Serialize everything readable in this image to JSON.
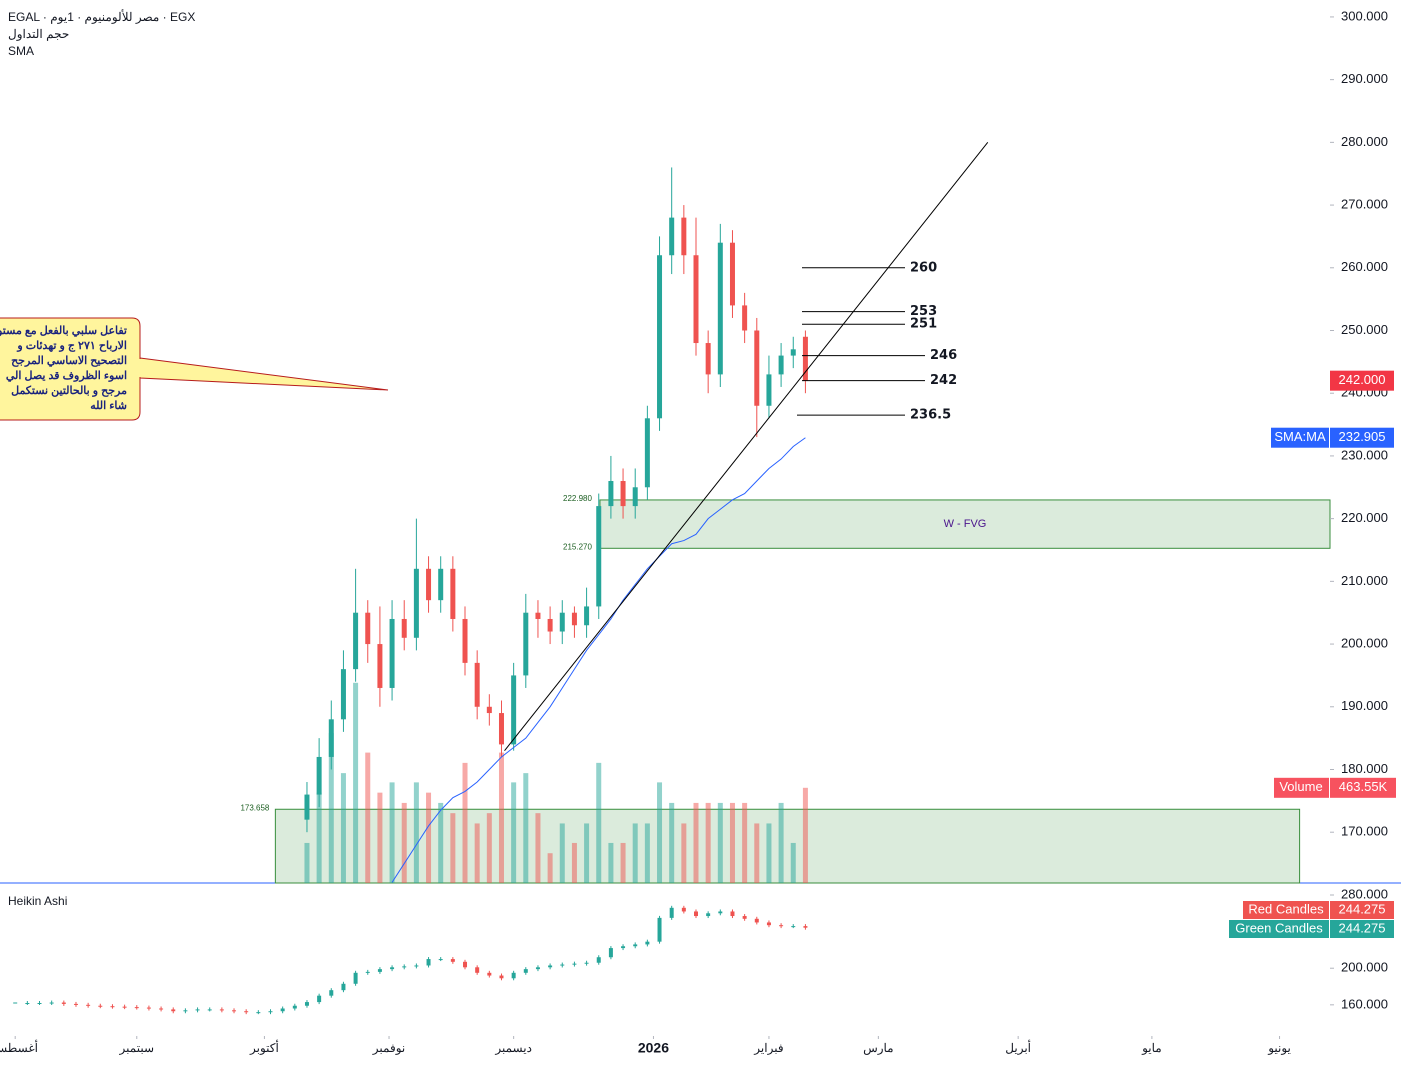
{
  "chart_data": {
    "type": "candlestick",
    "title": "EGAL · مصر للألومنيوم · 1يوم · EGX",
    "subtitle": "حجم التداول",
    "indicator": "SMA",
    "x": [
      48,
      50,
      52,
      54,
      56,
      58,
      60,
      62,
      64,
      66,
      68,
      70,
      72,
      74,
      76,
      78,
      80,
      82,
      84,
      86,
      88,
      90,
      92,
      94,
      96,
      98,
      100,
      102,
      104,
      106,
      108,
      110,
      112,
      114,
      116,
      118,
      120,
      122,
      124,
      126,
      128,
      130
    ],
    "open": [
      172,
      176,
      182,
      188,
      196,
      205,
      200,
      193,
      204,
      201,
      212,
      207,
      212,
      204,
      197,
      190,
      189,
      184,
      195,
      205,
      204,
      202,
      205,
      203,
      206,
      222,
      226,
      222,
      225,
      236,
      262,
      268,
      262,
      248,
      243,
      264,
      254,
      250,
      238,
      243,
      246,
      249
    ],
    "high": [
      178,
      185,
      191,
      199,
      212,
      207,
      206,
      207,
      207,
      220,
      214,
      214,
      214,
      206,
      199,
      192,
      191,
      197,
      208,
      207,
      206,
      207,
      206,
      209,
      224,
      230,
      228,
      228,
      238,
      265,
      276,
      270,
      268,
      250,
      267,
      266,
      256,
      252,
      246,
      248,
      249,
      250
    ],
    "low": [
      170,
      174,
      180,
      186,
      194,
      197,
      190,
      191,
      199,
      199,
      205,
      205,
      202,
      195,
      188,
      187,
      182,
      183,
      193,
      201,
      200,
      200,
      201,
      201,
      204,
      220,
      220,
      220,
      223,
      234,
      259,
      259,
      246,
      240,
      241,
      252,
      248,
      233,
      236,
      241,
      244,
      240
    ],
    "close": [
      176,
      182,
      188,
      196,
      205,
      200,
      193,
      204,
      201,
      212,
      207,
      212,
      204,
      197,
      190,
      189,
      184,
      195,
      205,
      204,
      202,
      205,
      203,
      206,
      222,
      226,
      222,
      225,
      236,
      262,
      268,
      262,
      248,
      243,
      264,
      254,
      250,
      238,
      243,
      246,
      247,
      242
    ],
    "up_color": "#26a69a",
    "down_color": "#ef5350",
    "xlim": [
      -2.5,
      216.3
    ],
    "ylim": [
      161.9,
      302.7
    ],
    "yticks": [
      {
        "value": 170,
        "label": "170.000"
      },
      {
        "value": 180,
        "label": "180.000"
      },
      {
        "value": 190,
        "label": "190.000"
      },
      {
        "value": 200,
        "label": "200.000"
      },
      {
        "value": 210,
        "label": "210.000"
      },
      {
        "value": 220,
        "label": "220.000"
      },
      {
        "value": 230,
        "label": "230.000"
      },
      {
        "value": 240,
        "label": "240.000"
      },
      {
        "value": 250,
        "label": "250.000"
      },
      {
        "value": 260,
        "label": "260.000"
      },
      {
        "value": 270,
        "label": "270.000"
      },
      {
        "value": 280,
        "label": "280.000"
      },
      {
        "value": 290,
        "label": "290.000"
      },
      {
        "value": 300,
        "label": "300.000"
      }
    ],
    "xticks": [
      {
        "value": 0,
        "label": "أغسطس"
      },
      {
        "value": 20,
        "label": "سبتمبر"
      },
      {
        "value": 41,
        "label": "أكتوبر"
      },
      {
        "value": 61.5,
        "label": "نوفمبر"
      },
      {
        "value": 82,
        "label": "ديسمبر"
      },
      {
        "value": 105,
        "label": "2026"
      },
      {
        "value": 124,
        "label": "فبراير"
      },
      {
        "value": 142,
        "label": "مارس"
      },
      {
        "value": 165,
        "label": "أبريل"
      },
      {
        "value": 187,
        "label": "مايو"
      },
      {
        "value": 208,
        "label": "يونيو"
      }
    ],
    "last_price": {
      "value": 242,
      "label": "242.000"
    },
    "sma": {
      "name": "SMA:MA",
      "color": "#2962ff",
      "last": {
        "value": 232.905,
        "label": "232.905"
      },
      "values": [
        null,
        null,
        null,
        null,
        null,
        null,
        null,
        162,
        165,
        168,
        171,
        173.5,
        175.5,
        176.5,
        178,
        180,
        182,
        183.5,
        185,
        187.5,
        190,
        193,
        196,
        199,
        201.5,
        204,
        207,
        209.5,
        212,
        214,
        216,
        216.5,
        217.5,
        220,
        221.5,
        223,
        224,
        226,
        228,
        229.5,
        231.5,
        232.9
      ]
    },
    "volume": {
      "name": "Volume",
      "ylim": [
        0,
        4300
      ],
      "last": {
        "value": 463.55,
        "label": "463.55K"
      },
      "values": [
        195,
        440,
        730,
        535,
        975,
        635,
        440,
        490,
        390,
        490,
        440,
        390,
        340,
        585,
        290,
        340,
        635,
        490,
        535,
        340,
        145,
        290,
        195,
        290,
        585,
        195,
        195,
        290,
        290,
        490,
        390,
        290,
        390,
        390,
        390,
        390,
        390,
        290,
        290,
        390,
        195,
        463.55
      ]
    },
    "levels": [
      260,
      253,
      251,
      246,
      242,
      236.5
    ],
    "trendline": {
      "x": [
        80.5,
        160
      ],
      "y": [
        183,
        280
      ]
    },
    "fvg": {
      "name": "W - FVG",
      "x_start": 96.2,
      "top": {
        "value": 222.98,
        "label": "222.980"
      },
      "bottom": {
        "value": 215.27,
        "label": "215.270"
      }
    },
    "volume_zone": {
      "x": [
        42.8,
        211.3
      ],
      "top": {
        "value": 173.658,
        "label": "173.658"
      }
    },
    "annotation": [
      "تفاعل سلبي بالفعل مع مستوى",
      "الارباح ٢٧١ ج و تهدئات و",
      "التصحيح الاساسي المرجح",
      "اسوء الظروف قد يصل الي",
      "مرجح و بالحالتين نستكمل",
      "شاء الله"
    ],
    "heikin_ashi": {
      "title": "Heikin Ashi",
      "ylim": [
        132.5,
        293.1
      ],
      "yticks": [
        {
          "value": 160,
          "label": "160.000"
        },
        {
          "value": 200,
          "label": "200.000"
        },
        {
          "value": 280,
          "label": "280.000"
        }
      ],
      "x": [
        0,
        2,
        4,
        6,
        8,
        10,
        12,
        14,
        16,
        18,
        20,
        22,
        24,
        26,
        28,
        30,
        32,
        34,
        36,
        38,
        40,
        42,
        44,
        46,
        48,
        50,
        52,
        54,
        56,
        58,
        60,
        62,
        64,
        66,
        68,
        70,
        72,
        74,
        76,
        78,
        80,
        82,
        84,
        86,
        88,
        90,
        92,
        94,
        96,
        98,
        100,
        102,
        104,
        106,
        108,
        110,
        112,
        114,
        116,
        118,
        120,
        122,
        124,
        126,
        128,
        130
      ],
      "values": [
        162,
        162,
        162,
        162.5,
        161,
        160,
        159,
        158.5,
        158,
        157.5,
        157,
        156,
        155,
        153,
        154,
        155,
        155,
        154,
        153,
        152,
        152,
        153,
        156,
        159,
        163,
        170,
        176,
        183,
        195,
        196,
        199,
        201,
        202,
        203,
        210,
        210,
        207,
        201,
        195,
        192,
        189,
        195,
        199,
        201,
        203,
        204,
        205,
        206,
        212,
        222,
        224,
        226,
        229,
        255,
        266,
        262,
        257,
        260,
        262,
        257,
        254,
        250,
        247,
        246,
        246,
        244.275
      ],
      "series": [
        {
          "name": "Red Candles",
          "color": "#ef5350",
          "last": 244.275
        },
        {
          "name": "Green Candles",
          "color": "#26a69a",
          "last": 244.275
        }
      ]
    }
  }
}
